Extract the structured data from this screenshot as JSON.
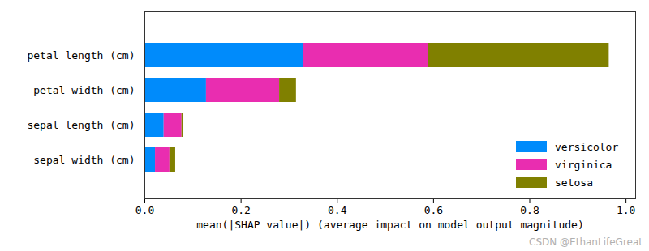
{
  "chart_data": {
    "type": "bar",
    "orientation": "horizontal",
    "stacked": true,
    "xlabel": "mean(|SHAP value|) (average impact on model output magnitude)",
    "categories": [
      "petal length (cm)",
      "petal width (cm)",
      "sepal length (cm)",
      "sepal width (cm)"
    ],
    "series": [
      {
        "name": "versicolor",
        "color": "#008bfb",
        "values": [
          0.33,
          0.128,
          0.04,
          0.022
        ]
      },
      {
        "name": "virginica",
        "color": "#e92db0",
        "values": [
          0.26,
          0.152,
          0.037,
          0.03
        ]
      },
      {
        "name": "setosa",
        "color": "#808000",
        "values": [
          0.375,
          0.035,
          0.003,
          0.012
        ]
      }
    ],
    "xlim": [
      0,
      1.02
    ],
    "xticks": [
      {
        "value": 0,
        "label": "0.0"
      },
      0.2,
      0.4,
      0.6,
      0.8,
      {
        "value": 1,
        "label": "1.0"
      }
    ],
    "legend": "lower right",
    "grid": false,
    "annotations": [
      "CSDN @EthanLifeGreat"
    ]
  }
}
